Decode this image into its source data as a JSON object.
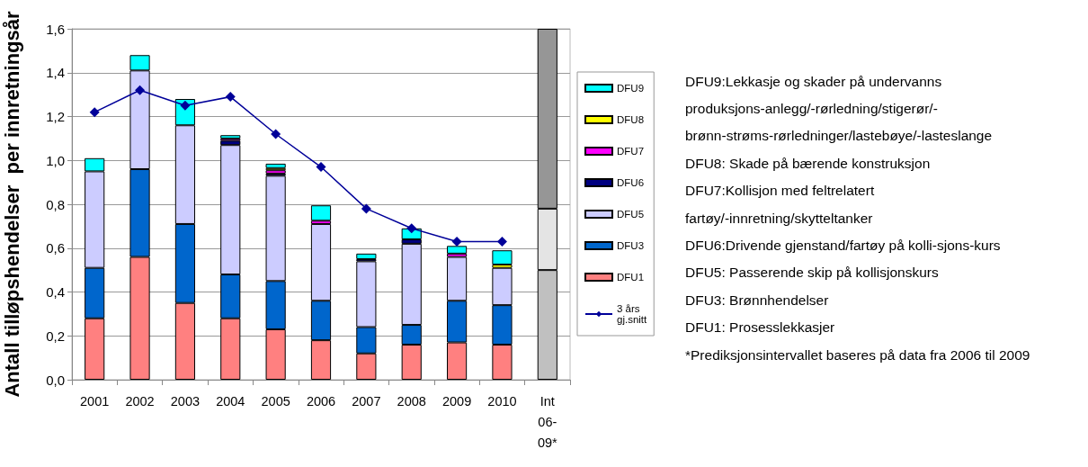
{
  "chart_data": {
    "type": "bar",
    "stacked": true,
    "ylabel": "Antall tilløpshendelser  per innretningsår",
    "categories": [
      "2001",
      "2002",
      "2003",
      "2004",
      "2005",
      "2006",
      "2007",
      "2008",
      "2009",
      "2010",
      "Int 06-09*"
    ],
    "ylim": [
      0,
      1.6
    ],
    "yticks": [
      {
        "value": 0,
        "label": "0,0"
      },
      {
        "value": 0.2,
        "label": "0,2"
      },
      {
        "value": 0.4,
        "label": "0,4"
      },
      {
        "value": 0.6,
        "label": "0,6"
      },
      {
        "value": 0.8,
        "label": "0,8"
      },
      {
        "value": 1,
        "label": "1,0"
      },
      {
        "value": 1.2,
        "label": "1,2"
      },
      {
        "value": 1.4,
        "label": "1,4"
      },
      {
        "value": 1.6,
        "label": "1,6"
      }
    ],
    "grid": "y",
    "legend": "right",
    "series": [
      {
        "name": "DFU1",
        "color": "#ff8080",
        "values": [
          0.28,
          0.56,
          0.35,
          0.28,
          0.23,
          0.18,
          0.12,
          0.16,
          0.17,
          0.16,
          null
        ]
      },
      {
        "name": "DFU3",
        "color": "#0066cc",
        "values": [
          0.23,
          0.4,
          0.36,
          0.2,
          0.22,
          0.18,
          0.12,
          0.09,
          0.19,
          0.18,
          null
        ]
      },
      {
        "name": "DFU5",
        "color": "#ccccff",
        "values": [
          0.44,
          0.45,
          0.45,
          0.59,
          0.48,
          0.35,
          0.3,
          0.37,
          0.2,
          0.17,
          null
        ]
      },
      {
        "name": "DFU6",
        "color": "#000080",
        "values": [
          0,
          0,
          0,
          0.02,
          0.01,
          0,
          0.01,
          0.02,
          0,
          0,
          null
        ]
      },
      {
        "name": "DFU7",
        "color": "#ff00ff",
        "values": [
          0,
          0,
          0,
          0.01,
          0.015,
          0.015,
          0,
          0,
          0.015,
          0,
          null
        ]
      },
      {
        "name": "DFU8",
        "color": "#ffff00",
        "values": [
          0,
          0,
          0,
          0,
          0.01,
          0,
          0,
          0,
          0,
          0.015,
          null
        ]
      },
      {
        "name": "DFU9",
        "color": "#00ffff",
        "values": [
          0.06,
          0.07,
          0.12,
          0.015,
          0.02,
          0.07,
          0.025,
          0.05,
          0.035,
          0.065,
          null
        ]
      },
      {
        "color": "#c0c0c0",
        "values": [
          null,
          null,
          null,
          null,
          null,
          null,
          null,
          null,
          null,
          null,
          0.5
        ]
      },
      {
        "color": "#e4e4e4",
        "values": [
          null,
          null,
          null,
          null,
          null,
          null,
          null,
          null,
          null,
          null,
          0.28
        ]
      },
      {
        "color": "#969696",
        "values": [
          null,
          null,
          null,
          null,
          null,
          null,
          null,
          null,
          null,
          null,
          0.82
        ]
      },
      {
        "name": "3 års gj.snitt",
        "type": "line",
        "color": "#000099",
        "marker": "diamond",
        "values": [
          1.22,
          1.32,
          1.25,
          1.29,
          1.12,
          0.97,
          0.78,
          0.69,
          0.63,
          0.63,
          null
        ]
      }
    ],
    "annotations": [
      "DFU9:Lekkasje og skader på undervanns",
      "produksjons-anlegg/-rørledning/stigerør/-",
      "brønn-strøms-rørledninger/lastebøye/-lasteslange",
      "DFU8: Skade på bærende konstruksjon",
      "DFU7:Kollisjon med feltrelatert",
      "fartøy/-innretning/skytteltanker",
      "DFU6:Drivende gjenstand/fartøy på kolli-sjons-kurs",
      "DFU5: Passerende skip på kollisjonskurs",
      "DFU3: Brønnhendelser",
      "DFU1: Prosesslekkasjer",
      "*Prediksjonsintervallet baseres på data fra 2006 til 2009"
    ]
  }
}
